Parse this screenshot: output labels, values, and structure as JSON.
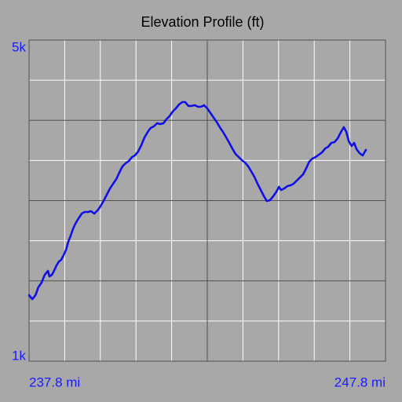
{
  "chart_data": {
    "type": "line",
    "title": "Elevation Profile (ft)",
    "x": [
      237.8,
      237.89,
      237.98,
      238.06,
      238.15,
      238.24,
      238.33,
      238.37,
      238.44,
      238.5,
      238.57,
      238.64,
      238.7,
      238.77,
      238.84,
      238.9,
      238.97,
      239.03,
      239.1,
      239.19,
      239.28,
      239.36,
      239.45,
      239.54,
      239.63,
      239.72,
      239.8,
      239.89,
      239.98,
      240.07,
      240.16,
      240.25,
      240.33,
      240.42,
      240.51,
      240.6,
      240.69,
      240.77,
      240.86,
      240.95,
      241.04,
      241.13,
      241.21,
      241.3,
      241.39,
      241.48,
      241.57,
      241.65,
      241.74,
      241.83,
      241.92,
      242.01,
      242.1,
      242.18,
      242.27,
      242.36,
      242.45,
      242.54,
      242.62,
      242.71,
      242.8,
      242.89,
      242.98,
      243.06,
      243.15,
      243.24,
      243.33,
      243.42,
      243.5,
      243.59,
      243.68,
      243.77,
      243.86,
      243.95,
      244.03,
      244.12,
      244.21,
      244.3,
      244.39,
      244.47,
      244.56,
      244.65,
      244.74,
      244.81,
      244.87,
      244.96,
      245.05,
      245.14,
      245.22,
      245.31,
      245.4,
      245.49,
      245.58,
      245.66,
      245.75,
      245.84,
      245.93,
      246.02,
      246.11,
      246.19,
      246.28,
      246.37,
      246.46,
      246.55,
      246.63,
      246.7,
      246.77,
      246.85,
      246.92,
      246.99,
      247.07,
      247.16,
      247.25
    ],
    "series": [
      {
        "name": "Elevation",
        "color": "#1010e6",
        "values": [
          1822,
          1773,
          1822,
          1919,
          1978,
          2076,
          2125,
          2056,
          2076,
          2125,
          2193,
          2242,
          2262,
          2320,
          2389,
          2487,
          2565,
          2643,
          2712,
          2780,
          2839,
          2858,
          2858,
          2868,
          2839,
          2878,
          2927,
          2995,
          3073,
          3152,
          3210,
          3269,
          3347,
          3425,
          3465,
          3494,
          3543,
          3562,
          3611,
          3690,
          3787,
          3856,
          3905,
          3924,
          3963,
          3954,
          3963,
          4012,
          4051,
          4110,
          4149,
          4198,
          4227,
          4227,
          4179,
          4179,
          4188,
          4169,
          4169,
          4188,
          4149,
          4090,
          4032,
          3983,
          3914,
          3856,
          3787,
          3719,
          3650,
          3582,
          3543,
          3504,
          3474,
          3425,
          3367,
          3298,
          3210,
          3132,
          3054,
          2995,
          3005,
          3054,
          3112,
          3171,
          3132,
          3152,
          3181,
          3191,
          3210,
          3249,
          3288,
          3328,
          3406,
          3484,
          3523,
          3543,
          3572,
          3601,
          3650,
          3670,
          3719,
          3729,
          3777,
          3856,
          3914,
          3856,
          3738,
          3680,
          3719,
          3640,
          3592,
          3562,
          3631
        ]
      }
    ],
    "xlim": [
      237.8,
      247.8
    ],
    "xticks": [
      {
        "value": 237.8,
        "label": "237.8 mi"
      },
      {
        "value": 247.8,
        "label": "247.8 mi"
      }
    ],
    "ylim": [
      1000,
      5000
    ],
    "yticks": [
      {
        "value": 1000,
        "label": "1k"
      },
      {
        "value": 5000,
        "label": "5k"
      }
    ],
    "xgrid": [
      238.8,
      239.8,
      240.8,
      241.8,
      243.8,
      244.8,
      245.8,
      246.8
    ],
    "xgrid_major": [
      242.8
    ],
    "ygrid": [
      1500,
      2500,
      3500,
      4500
    ],
    "ygrid_major": [
      2000,
      3000,
      4000
    ]
  }
}
